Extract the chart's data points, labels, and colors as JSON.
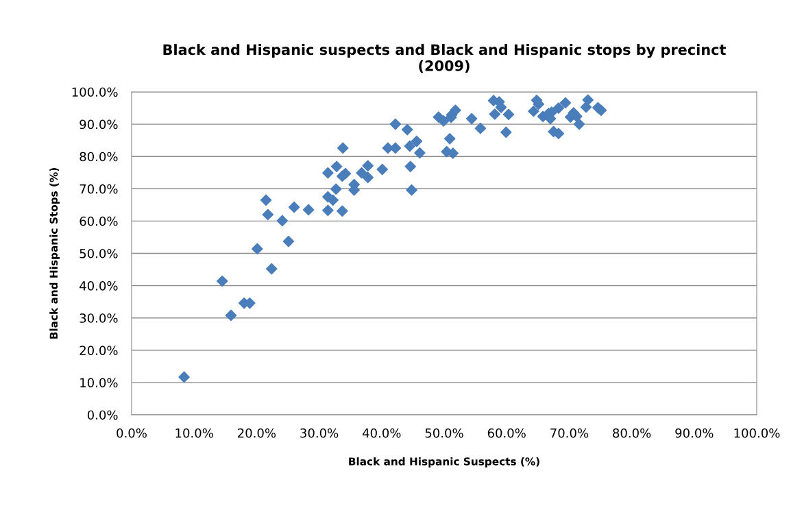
{
  "chart_data": {
    "type": "scatter",
    "title": "Black and Hispanic suspects and Black and Hispanic stops by precinct\n(2009)",
    "xlabel": "Black and Hispanic Suspects (%)",
    "ylabel": "Black and Hispanic Stops (%)",
    "marker": "diamond",
    "grid": "y",
    "legend": false,
    "xlim": [
      0,
      100
    ],
    "ylim": [
      0,
      100
    ],
    "xticks": [
      {
        "value": 0,
        "label": "0.0%"
      },
      {
        "value": 10,
        "label": "10.0%"
      },
      {
        "value": 20,
        "label": "20.0%"
      },
      {
        "value": 30,
        "label": "30.0%"
      },
      {
        "value": 40,
        "label": "40.0%"
      },
      {
        "value": 50,
        "label": "50.0%"
      },
      {
        "value": 60,
        "label": "60.0%"
      },
      {
        "value": 70,
        "label": "70.0%"
      },
      {
        "value": 80,
        "label": "80.0%"
      },
      {
        "value": 90,
        "label": "90.0%"
      },
      {
        "value": 100,
        "label": "100.0%"
      }
    ],
    "yticks": [
      {
        "value": 0,
        "label": "0.0%"
      },
      {
        "value": 10,
        "label": "10.0%"
      },
      {
        "value": 20,
        "label": "20.0%"
      },
      {
        "value": 30,
        "label": "30.0%"
      },
      {
        "value": 40,
        "label": "40.0%"
      },
      {
        "value": 50,
        "label": "50.0%"
      },
      {
        "value": 60,
        "label": "60.0%"
      },
      {
        "value": 70,
        "label": "70.0%"
      },
      {
        "value": 80,
        "label": "80.0%"
      },
      {
        "value": 90,
        "label": "90.0%"
      },
      {
        "value": 100,
        "label": "100.0%"
      }
    ],
    "series": [
      {
        "color": "#4a7ebb",
        "x": [
          8.4,
          14.5,
          15.9,
          18.0,
          18.9,
          20.1,
          22.4,
          21.5,
          21.8,
          24.1,
          25.1,
          26.0,
          28.3,
          31.4,
          33.7,
          31.4,
          32.2,
          32.7,
          31.4,
          32.8,
          33.7,
          34.2,
          33.8,
          35.6,
          35.6,
          36.8,
          37.8,
          37.8,
          40.1,
          41.0,
          42.2,
          42.2,
          44.1,
          44.5,
          44.6,
          44.8,
          45.6,
          46.1,
          49.1,
          49.9,
          51.1,
          51.2,
          51.8,
          50.9,
          50.4,
          51.4,
          54.4,
          55.8,
          57.9,
          58.8,
          59.1,
          58.1,
          60.3,
          59.9,
          64.8,
          65.1,
          64.3,
          65.8,
          66.7,
          67.2,
          67.0,
          68.3,
          69.4,
          67.5,
          68.3,
          70.7,
          70.2,
          71.2,
          71.6,
          73.0,
          72.7,
          74.6,
          75.1
        ],
        "values": [
          11.7,
          41.4,
          30.8,
          34.6,
          34.6,
          51.4,
          45.2,
          66.5,
          62.0,
          60.1,
          53.7,
          64.3,
          63.5,
          63.3,
          63.1,
          67.5,
          66.5,
          69.9,
          74.9,
          76.9,
          73.9,
          74.7,
          82.6,
          71.3,
          69.6,
          74.9,
          77.1,
          73.5,
          76.0,
          82.6,
          82.6,
          90.0,
          88.3,
          83.2,
          76.9,
          69.6,
          84.7,
          81.1,
          92.2,
          91.0,
          92.1,
          92.9,
          94.3,
          85.5,
          81.5,
          81.0,
          91.7,
          88.7,
          97.3,
          96.9,
          95.2,
          93.1,
          93.0,
          87.5,
          97.4,
          96.2,
          94.0,
          92.4,
          93.3,
          93.7,
          91.7,
          95.0,
          96.6,
          87.7,
          87.1,
          93.5,
          92.2,
          92.4,
          90.0,
          97.5,
          95.3,
          95.1,
          94.3
        ]
      }
    ]
  }
}
